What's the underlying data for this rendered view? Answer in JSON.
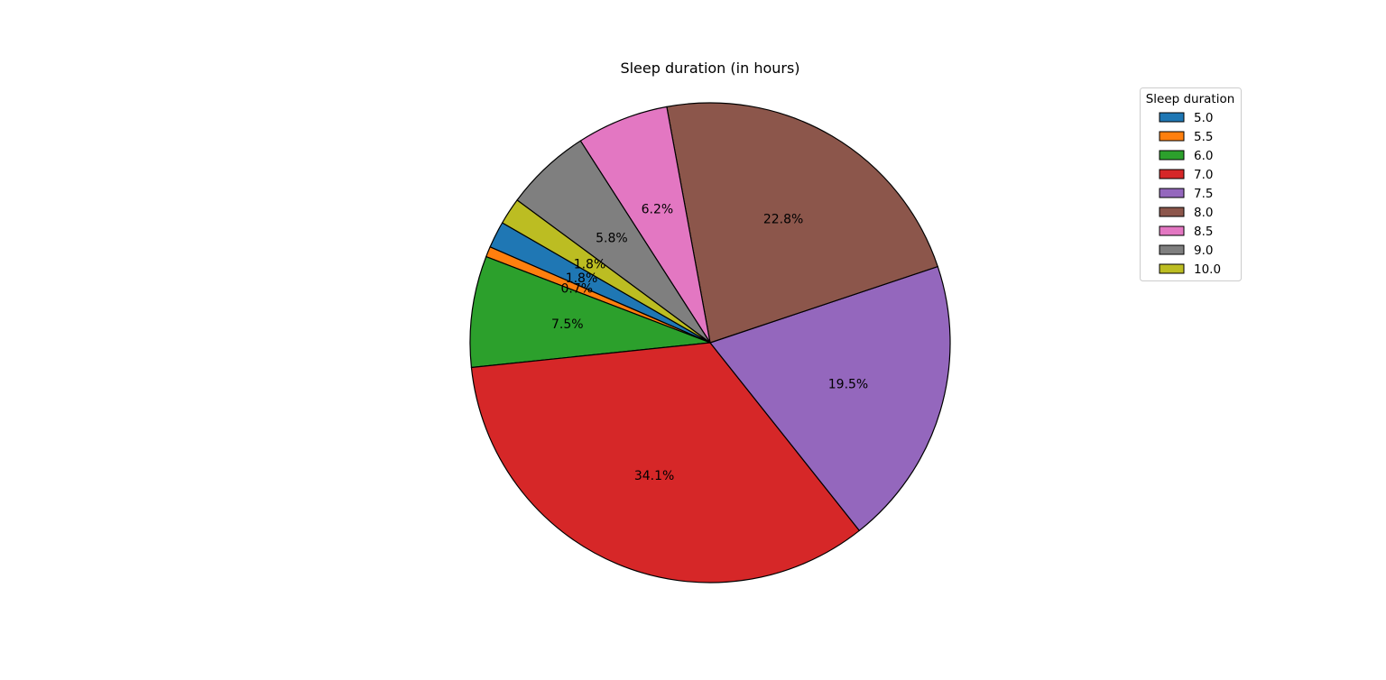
{
  "chart_data": {
    "type": "pie",
    "title": "Sleep duration (in hours)",
    "categories": [
      "5.0",
      "5.5",
      "6.0",
      "7.0",
      "7.5",
      "8.0",
      "8.5",
      "9.0",
      "10.0"
    ],
    "values": [
      1.8,
      0.7,
      7.5,
      34.1,
      19.5,
      22.8,
      6.2,
      5.8,
      1.8
    ],
    "value_labels": [
      "1.8%",
      "0.7%",
      "7.5%",
      "34.1%",
      "19.5%",
      "22.8%",
      "6.2%",
      "5.8%",
      "1.8%"
    ],
    "colors": [
      "#1f77b4",
      "#ff7f0e",
      "#2ca02c",
      "#d62728",
      "#9467bd",
      "#8c564b",
      "#e377c2",
      "#7f7f7f",
      "#bcbd22"
    ],
    "slice_edge_color": "#000000",
    "start_angle_deg": 150,
    "direction": "counterclockwise",
    "legend": {
      "title": "Sleep duration",
      "placement": "upper-right"
    }
  }
}
